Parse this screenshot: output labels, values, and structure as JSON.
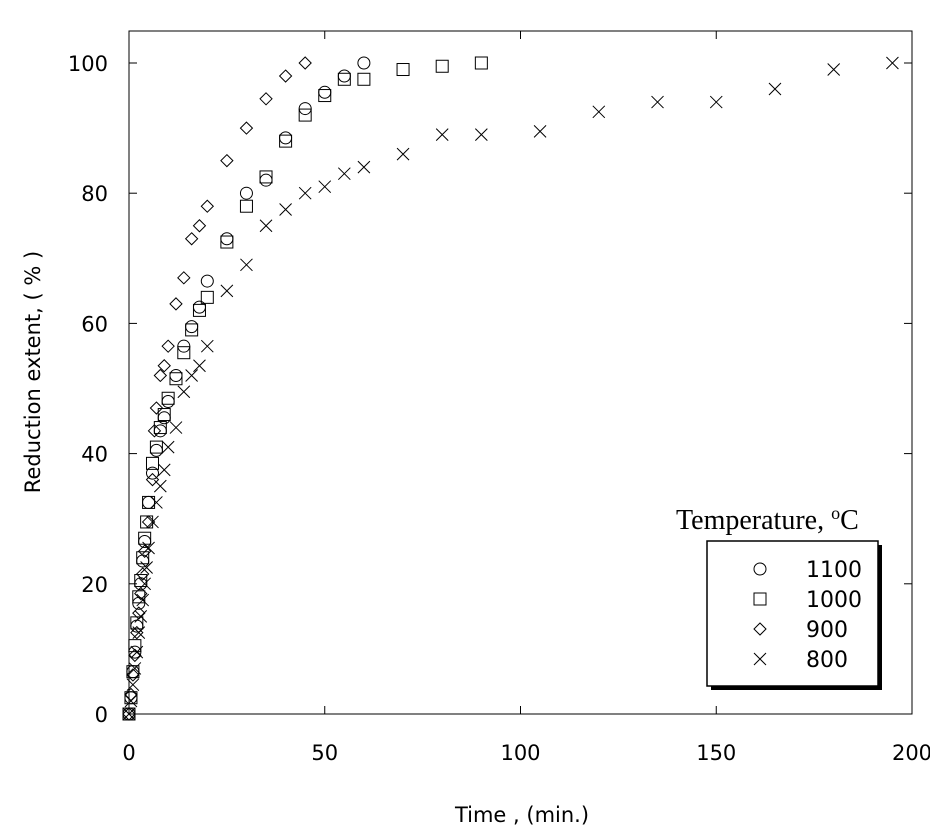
{
  "chart_data": {
    "type": "scatter",
    "xlabel": "Time , (min.)",
    "ylabel": "Reduction extent, ( % )",
    "xlim": [
      0,
      200
    ],
    "ylim": [
      0,
      105
    ],
    "xticks": [
      0,
      50,
      100,
      150,
      200
    ],
    "yticks": [
      0,
      20,
      40,
      60,
      80,
      100
    ],
    "grid": false,
    "legend": {
      "title": "Temperature, °C",
      "title_main": "Temperature, ",
      "title_sup": "o",
      "title_unit": "C",
      "placement": "bottom-right"
    },
    "series": [
      {
        "name": "1100",
        "marker": "circle",
        "points": [
          [
            0,
            0
          ],
          [
            0.5,
            2.5
          ],
          [
            1,
            6.5
          ],
          [
            1.5,
            9.5
          ],
          [
            2,
            13.5
          ],
          [
            2.5,
            17
          ],
          [
            3,
            20
          ],
          [
            3.5,
            23.5
          ],
          [
            4,
            26.5
          ],
          [
            5,
            32.5
          ],
          [
            6,
            37
          ],
          [
            7,
            40.5
          ],
          [
            8,
            43.5
          ],
          [
            9,
            45.5
          ],
          [
            10,
            48
          ],
          [
            12,
            52
          ],
          [
            14,
            56.5
          ],
          [
            16,
            59.5
          ],
          [
            18,
            62.5
          ],
          [
            20,
            66.5
          ],
          [
            25,
            73
          ],
          [
            30,
            80
          ],
          [
            35,
            82
          ],
          [
            40,
            88.5
          ],
          [
            45,
            93
          ],
          [
            50,
            95.5
          ],
          [
            55,
            98
          ],
          [
            60,
            100
          ]
        ]
      },
      {
        "name": "1000",
        "marker": "square",
        "points": [
          [
            0,
            0
          ],
          [
            0.5,
            2.5
          ],
          [
            1,
            6.5
          ],
          [
            1.5,
            10.5
          ],
          [
            2,
            14
          ],
          [
            2.5,
            18
          ],
          [
            3,
            20.5
          ],
          [
            3.5,
            24
          ],
          [
            4,
            27
          ],
          [
            4.5,
            29.5
          ],
          [
            5,
            32.5
          ],
          [
            6,
            38.5
          ],
          [
            7,
            41
          ],
          [
            8,
            44
          ],
          [
            9,
            46
          ],
          [
            10,
            48.5
          ],
          [
            12,
            51.5
          ],
          [
            14,
            55.5
          ],
          [
            16,
            59
          ],
          [
            18,
            62
          ],
          [
            20,
            64
          ],
          [
            25,
            72.5
          ],
          [
            30,
            78
          ],
          [
            35,
            82.5
          ],
          [
            40,
            88
          ],
          [
            45,
            92
          ],
          [
            50,
            95
          ],
          [
            55,
            97.5
          ],
          [
            60,
            97.5
          ],
          [
            70,
            99
          ],
          [
            80,
            99.5
          ],
          [
            90,
            100
          ]
        ]
      },
      {
        "name": "900",
        "marker": "diamond",
        "points": [
          [
            0,
            0
          ],
          [
            0.5,
            3
          ],
          [
            1,
            6
          ],
          [
            1.5,
            9
          ],
          [
            2,
            12.5
          ],
          [
            2.5,
            15.5
          ],
          [
            3,
            18.5
          ],
          [
            3.5,
            21.5
          ],
          [
            4,
            25
          ],
          [
            5,
            29.5
          ],
          [
            6,
            36
          ],
          [
            6.5,
            43.5
          ],
          [
            7,
            47
          ],
          [
            8,
            52
          ],
          [
            9,
            53.5
          ],
          [
            10,
            56.5
          ],
          [
            12,
            63
          ],
          [
            14,
            67
          ],
          [
            16,
            73
          ],
          [
            18,
            75
          ],
          [
            20,
            78
          ],
          [
            25,
            85
          ],
          [
            30,
            90
          ],
          [
            35,
            94.5
          ],
          [
            40,
            98
          ],
          [
            45,
            100
          ]
        ]
      },
      {
        "name": "800",
        "marker": "cross",
        "points": [
          [
            0,
            0
          ],
          [
            0.5,
            2
          ],
          [
            1,
            4.5
          ],
          [
            1.5,
            7
          ],
          [
            2,
            9.5
          ],
          [
            2.5,
            12.5
          ],
          [
            3,
            15
          ],
          [
            3.5,
            17.5
          ],
          [
            4,
            20
          ],
          [
            4.5,
            22.5
          ],
          [
            5,
            25.5
          ],
          [
            6,
            29.5
          ],
          [
            7,
            32.5
          ],
          [
            8,
            35
          ],
          [
            9,
            37.5
          ],
          [
            10,
            41
          ],
          [
            12,
            44
          ],
          [
            14,
            49.5
          ],
          [
            16,
            52
          ],
          [
            18,
            53.5
          ],
          [
            20,
            56.5
          ],
          [
            25,
            65
          ],
          [
            30,
            69
          ],
          [
            35,
            75
          ],
          [
            40,
            77.5
          ],
          [
            45,
            80
          ],
          [
            50,
            81
          ],
          [
            55,
            83
          ],
          [
            60,
            84
          ],
          [
            70,
            86
          ],
          [
            80,
            89
          ],
          [
            90,
            89
          ],
          [
            105,
            89.5
          ],
          [
            120,
            92.5
          ],
          [
            135,
            94
          ],
          [
            150,
            94
          ],
          [
            165,
            96
          ],
          [
            180,
            99
          ],
          [
            195,
            100
          ]
        ]
      }
    ]
  }
}
